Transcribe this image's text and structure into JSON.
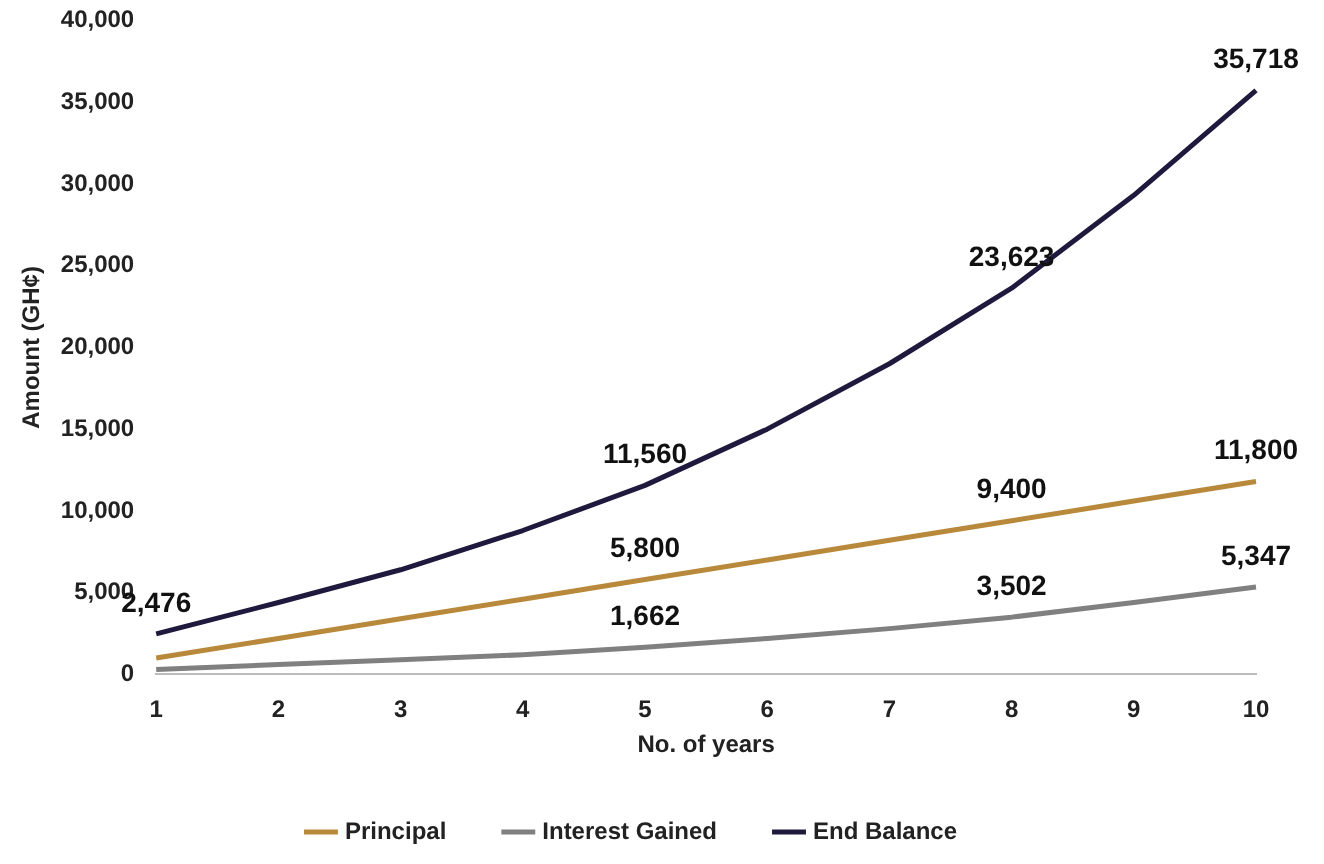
{
  "chart_data": {
    "type": "line",
    "xlabel": "No. of years",
    "ylabel": "Amount (GH¢)",
    "categories": [
      "1",
      "2",
      "3",
      "4",
      "5",
      "6",
      "7",
      "8",
      "9",
      "10"
    ],
    "series": [
      {
        "name": "Principal",
        "color": "#b8893a",
        "values": [
          1000,
          2200,
          3400,
          4600,
          5800,
          7000,
          8200,
          9400,
          10600,
          11800
        ],
        "value_labels": [
          null,
          null,
          null,
          null,
          "5,800",
          null,
          null,
          "9,400",
          null,
          "11,800"
        ]
      },
      {
        "name": "Interest Gained",
        "color": "#808080",
        "values": [
          300,
          600,
          900,
          1200,
          1662,
          2200,
          2800,
          3502,
          4400,
          5347
        ],
        "value_labels": [
          null,
          null,
          null,
          null,
          "1,662",
          null,
          null,
          "3,502",
          null,
          "5,347"
        ]
      },
      {
        "name": "End Balance",
        "color": "#1f1a3d",
        "values": [
          2476,
          4400,
          6400,
          8800,
          11560,
          15000,
          19000,
          23623,
          29300,
          35718
        ],
        "value_labels": [
          "2,476",
          null,
          null,
          null,
          "11,560",
          null,
          null,
          "23,623",
          null,
          "35,718"
        ]
      }
    ],
    "ylim": [
      0,
      40000
    ],
    "yticks": [
      0,
      {
        "value": 5000,
        "label": "5,000"
      },
      {
        "value": 10000,
        "label": "10,000"
      },
      {
        "value": 15000,
        "label": "15,000"
      },
      {
        "value": 20000,
        "label": "20,000"
      },
      {
        "value": 25000,
        "label": "25,000"
      },
      {
        "value": 30000,
        "label": "30,000"
      },
      {
        "value": 35000,
        "label": "35,000"
      },
      {
        "value": 40000,
        "label": "40,000"
      }
    ],
    "grid": false,
    "legend": "bottom",
    "marker": "none",
    "line_style": "solid"
  }
}
